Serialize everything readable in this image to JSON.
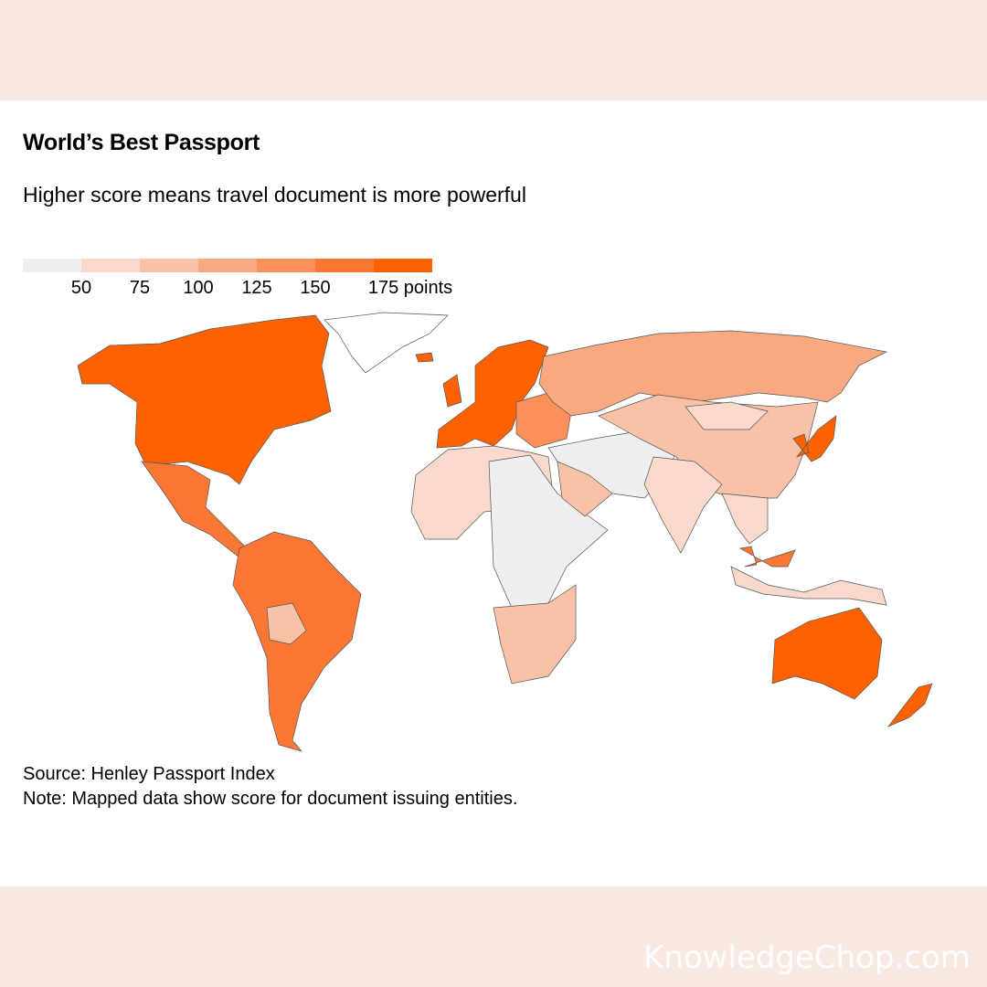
{
  "title": "World’s Best Passport",
  "subtitle": "Higher score means travel document is more powerful",
  "legend": {
    "colors": [
      "#efefef",
      "#f8d9cb",
      "#f9c2a6",
      "#f9a981",
      "#fb9059",
      "#fc7734",
      "#fd6101"
    ],
    "ticks": [
      "50",
      "75",
      "100",
      "125",
      "150",
      "175 points"
    ]
  },
  "map": {
    "no_data_color": "#ffffff",
    "regions": [
      {
        "id": "canada-usa",
        "level": 6
      },
      {
        "id": "greenland",
        "level": -1
      },
      {
        "id": "mexico-central-america",
        "level": 5
      },
      {
        "id": "south-america",
        "level": 5
      },
      {
        "id": "bolivia",
        "level": 2
      },
      {
        "id": "europe",
        "level": 6
      },
      {
        "id": "eastern-europe",
        "level": 4
      },
      {
        "id": "russia",
        "level": 3
      },
      {
        "id": "north-africa",
        "level": 1
      },
      {
        "id": "central-africa",
        "level": 0
      },
      {
        "id": "southern-africa",
        "level": 2
      },
      {
        "id": "middle-east",
        "level": 0
      },
      {
        "id": "gulf",
        "level": 2
      },
      {
        "id": "china-central-asia",
        "level": 2
      },
      {
        "id": "mongolia",
        "level": 1
      },
      {
        "id": "india",
        "level": 1
      },
      {
        "id": "southeast-asia",
        "level": 1
      },
      {
        "id": "japan-korea",
        "level": 6
      },
      {
        "id": "malaysia",
        "level": 5
      },
      {
        "id": "indonesia",
        "level": 1
      },
      {
        "id": "australia",
        "level": 6
      },
      {
        "id": "new-zealand",
        "level": 6
      },
      {
        "id": "iceland",
        "level": 6
      },
      {
        "id": "uk-ireland",
        "level": 6
      }
    ]
  },
  "source": "Source: Henley Passport Index",
  "note": "Note: Mapped data show score for document issuing entities.",
  "watermark": "KnowledgeChop.com"
}
